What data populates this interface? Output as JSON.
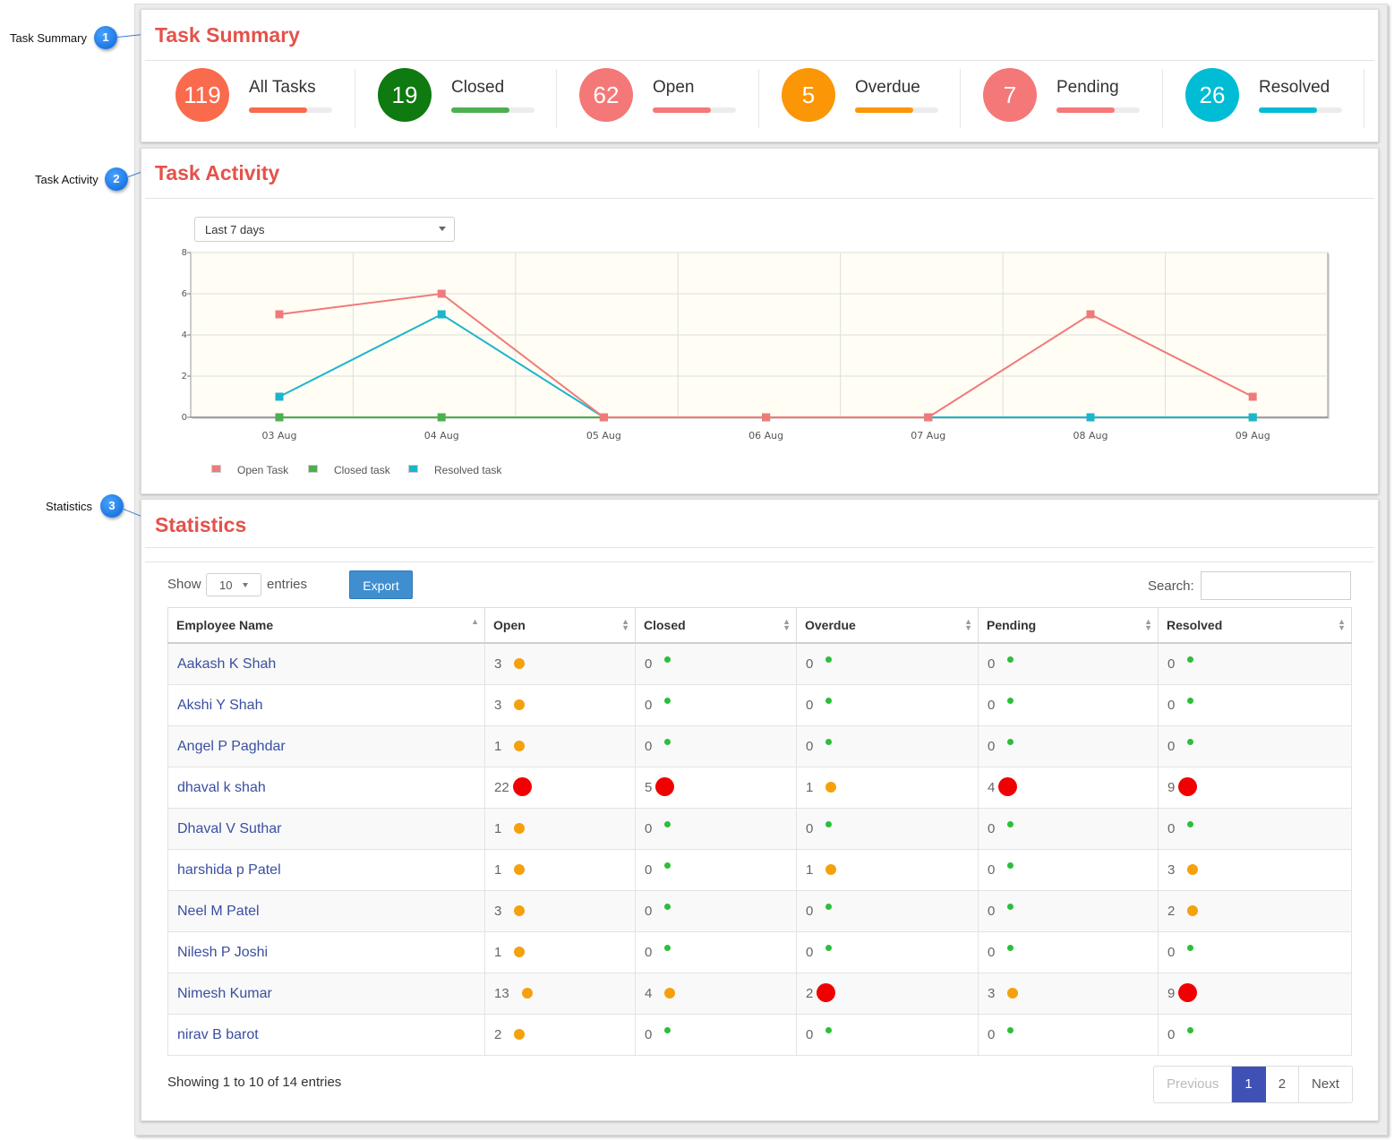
{
  "callouts": [
    {
      "label": "Task Summary",
      "number": "1"
    },
    {
      "label": "Task Activity",
      "number": "2"
    },
    {
      "label": "Statistics",
      "number": "3"
    }
  ],
  "summary": {
    "title": "Task Summary",
    "items": [
      {
        "value": "119",
        "label": "All Tasks",
        "color": "#fa6a4c",
        "progress": 0.7
      },
      {
        "value": "19",
        "label": "Closed",
        "color": "#0f7a0f",
        "progress": 0.7
      },
      {
        "value": "62",
        "label": "Open",
        "color": "#f57878",
        "progress": 0.7
      },
      {
        "value": "5",
        "label": "Overdue",
        "color": "#fb9606",
        "progress": 0.7
      },
      {
        "value": "7",
        "label": "Pending",
        "color": "#f57878",
        "progress": 0.7
      },
      {
        "value": "26",
        "label": "Resolved",
        "color": "#00bcd4",
        "progress": 0.7
      }
    ],
    "bar_colors": [
      "#fa6a4c",
      "#4caf50",
      "#f57878",
      "#fb9606",
      "#f57878",
      "#00bcd4"
    ]
  },
  "activity": {
    "title": "Task Activity",
    "range_selected": "Last 7 days"
  },
  "chart_data": {
    "type": "line",
    "x": [
      "03 Aug",
      "04 Aug",
      "05 Aug",
      "06 Aug",
      "07 Aug",
      "08 Aug",
      "09 Aug"
    ],
    "ylim": [
      0,
      8
    ],
    "yticks": [
      "0",
      "2",
      "4",
      "6",
      "8"
    ],
    "grid": true,
    "legend_position": "bottom-left",
    "series": [
      {
        "name": "Open Task",
        "color": "#f07a7a",
        "values": [
          5,
          6,
          0,
          0,
          0,
          5,
          1
        ]
      },
      {
        "name": "Closed task",
        "color": "#4caf50",
        "values": [
          0,
          0,
          0,
          0,
          0,
          0,
          0
        ]
      },
      {
        "name": "Resolved task",
        "color": "#1cb5cc",
        "values": [
          1,
          5,
          0,
          0,
          0,
          0,
          0
        ]
      }
    ]
  },
  "statistics": {
    "title": "Statistics",
    "show_label": "Show",
    "entries_label": "entries",
    "page_length": "10",
    "export_label": "Export",
    "search_label": "Search:",
    "search_value": "",
    "columns": [
      "Employee Name",
      "Open",
      "Closed",
      "Overdue",
      "Pending",
      "Resolved"
    ],
    "rows": [
      {
        "name": "Aakash K Shah",
        "cells": [
          {
            "v": "3",
            "s": "orange"
          },
          {
            "v": "0",
            "s": "green"
          },
          {
            "v": "0",
            "s": "green"
          },
          {
            "v": "0",
            "s": "green"
          },
          {
            "v": "0",
            "s": "green"
          }
        ]
      },
      {
        "name": "Akshi Y Shah",
        "cells": [
          {
            "v": "3",
            "s": "orange"
          },
          {
            "v": "0",
            "s": "green"
          },
          {
            "v": "0",
            "s": "green"
          },
          {
            "v": "0",
            "s": "green"
          },
          {
            "v": "0",
            "s": "green"
          }
        ]
      },
      {
        "name": "Angel P Paghdar",
        "cells": [
          {
            "v": "1",
            "s": "orange"
          },
          {
            "v": "0",
            "s": "green"
          },
          {
            "v": "0",
            "s": "green"
          },
          {
            "v": "0",
            "s": "green"
          },
          {
            "v": "0",
            "s": "green"
          }
        ]
      },
      {
        "name": "dhaval k shah",
        "cells": [
          {
            "v": "22",
            "s": "red"
          },
          {
            "v": "5",
            "s": "red"
          },
          {
            "v": "1",
            "s": "orange"
          },
          {
            "v": "4",
            "s": "red"
          },
          {
            "v": "9",
            "s": "red"
          }
        ]
      },
      {
        "name": "Dhaval V Suthar",
        "cells": [
          {
            "v": "1",
            "s": "orange"
          },
          {
            "v": "0",
            "s": "green"
          },
          {
            "v": "0",
            "s": "green"
          },
          {
            "v": "0",
            "s": "green"
          },
          {
            "v": "0",
            "s": "green"
          }
        ]
      },
      {
        "name": "harshida p Patel",
        "cells": [
          {
            "v": "1",
            "s": "orange"
          },
          {
            "v": "0",
            "s": "green"
          },
          {
            "v": "1",
            "s": "orange"
          },
          {
            "v": "0",
            "s": "green"
          },
          {
            "v": "3",
            "s": "orange"
          }
        ]
      },
      {
        "name": "Neel M Patel",
        "cells": [
          {
            "v": "3",
            "s": "orange"
          },
          {
            "v": "0",
            "s": "green"
          },
          {
            "v": "0",
            "s": "green"
          },
          {
            "v": "0",
            "s": "green"
          },
          {
            "v": "2",
            "s": "orange"
          }
        ]
      },
      {
        "name": "Nilesh P Joshi",
        "cells": [
          {
            "v": "1",
            "s": "orange"
          },
          {
            "v": "0",
            "s": "green"
          },
          {
            "v": "0",
            "s": "green"
          },
          {
            "v": "0",
            "s": "green"
          },
          {
            "v": "0",
            "s": "green"
          }
        ]
      },
      {
        "name": "Nimesh Kumar",
        "cells": [
          {
            "v": "13",
            "s": "orange"
          },
          {
            "v": "4",
            "s": "orange"
          },
          {
            "v": "2",
            "s": "red"
          },
          {
            "v": "3",
            "s": "orange"
          },
          {
            "v": "9",
            "s": "red"
          }
        ]
      },
      {
        "name": "nirav B barot",
        "cells": [
          {
            "v": "2",
            "s": "orange"
          },
          {
            "v": "0",
            "s": "green"
          },
          {
            "v": "0",
            "s": "green"
          },
          {
            "v": "0",
            "s": "green"
          },
          {
            "v": "0",
            "s": "green"
          }
        ]
      }
    ],
    "info": "Showing 1 to 10 of 14 entries",
    "pagination": {
      "previous": "Previous",
      "pages": [
        "1",
        "2"
      ],
      "active": "1",
      "next": "Next"
    }
  }
}
